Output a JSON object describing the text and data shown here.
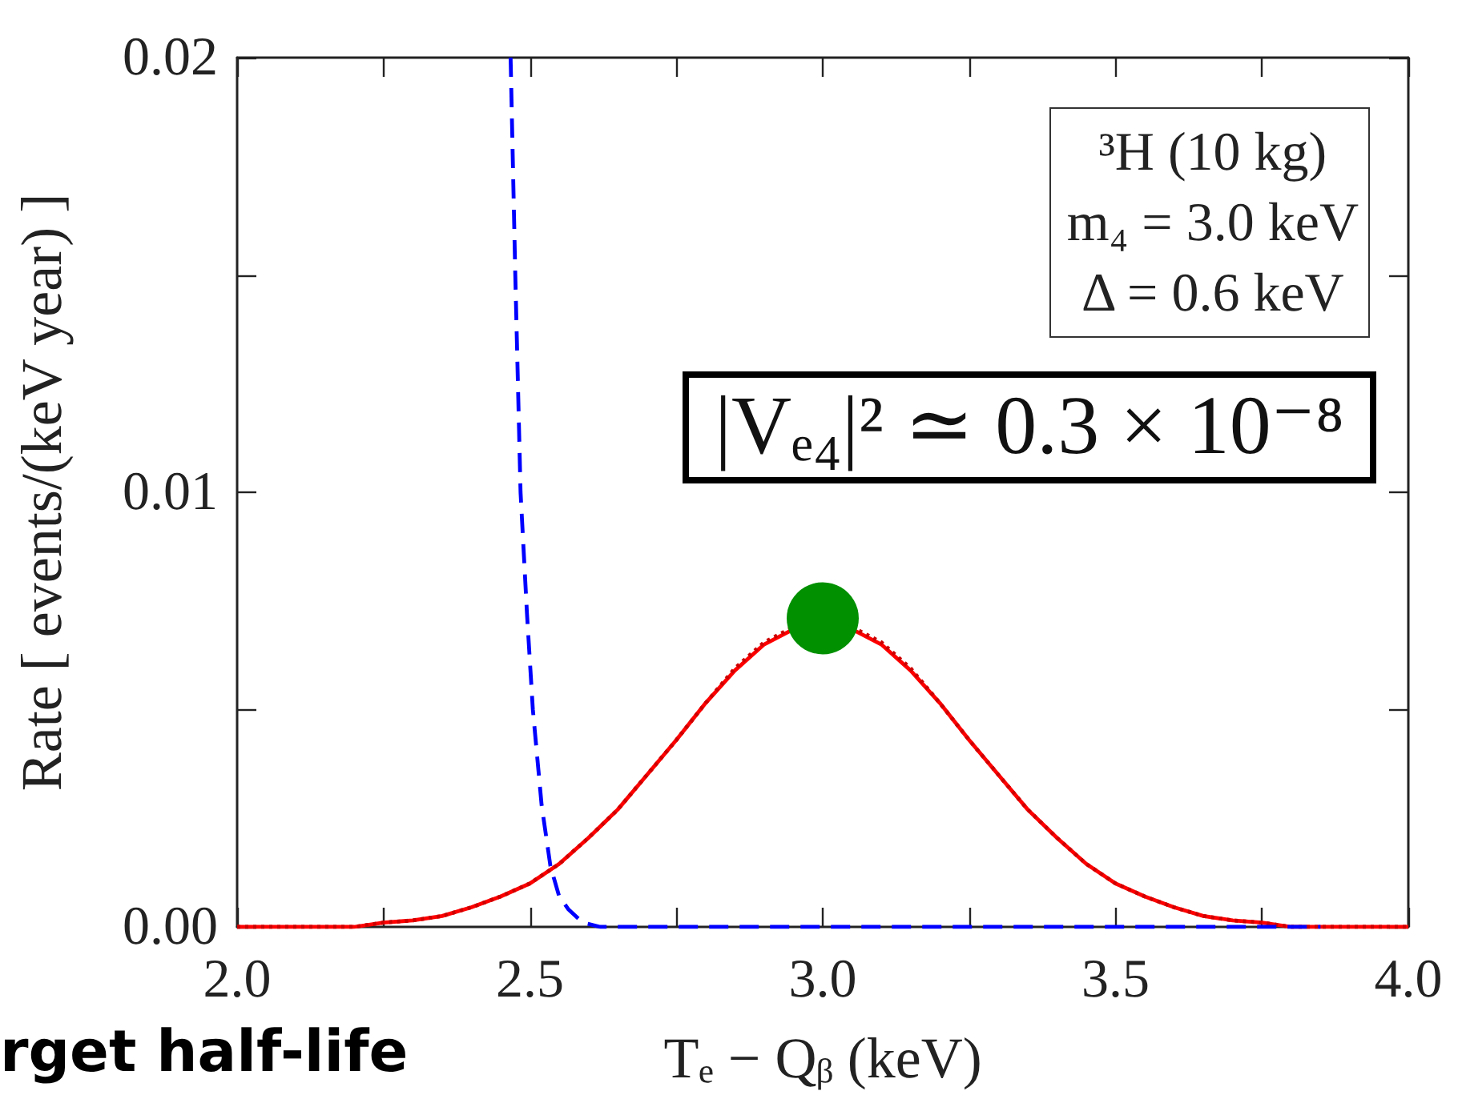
{
  "chart_data": {
    "type": "line",
    "xlabel": "Tₑ − Qᵦ (keV)",
    "ylabel": "Rate [ events/(keV year) ]",
    "annotations": [
      "³H (10 kg)",
      "m₄ = 3.0 keV",
      "Δ = 0.6 keV",
      "|Vₑ₄|² ≃ 0.3 × 10⁻⁸",
      "rget half-life"
    ],
    "xlim": [
      2,
      4
    ],
    "xticks": [
      {
        "value": 2,
        "label": "2.0"
      },
      {
        "value": 2.25,
        "label": null
      },
      {
        "value": 2.5,
        "label": "2.5"
      },
      {
        "value": 2.75,
        "label": null
      },
      {
        "value": 3,
        "label": "3.0"
      },
      {
        "value": 3.25,
        "label": null
      },
      {
        "value": 3.5,
        "label": "3.5"
      },
      {
        "value": 3.75,
        "label": null
      },
      {
        "value": 4,
        "label": "4.0"
      }
    ],
    "ylim": [
      0,
      0.02
    ],
    "yticks": [
      {
        "value": 0,
        "label": "0.00"
      },
      {
        "value": 0.005,
        "label": null
      },
      0.01,
      {
        "value": 0.015,
        "label": null
      },
      0.02
    ],
    "marker": "none",
    "series": [
      {
        "color": "#ff0000",
        "line_style": "solid",
        "x": [
          2,
          2.05,
          2.1,
          2.15,
          2.2,
          2.25,
          2.3,
          2.35,
          2.4,
          2.45,
          2.5,
          2.55,
          2.6,
          2.65,
          2.7,
          2.75,
          2.8,
          2.85,
          2.9,
          2.95,
          3,
          3.05,
          3.1,
          3.15,
          3.2,
          3.25,
          3.3,
          3.35,
          3.4,
          3.45,
          3.5,
          3.55,
          3.6,
          3.65,
          3.7,
          3.75,
          3.8,
          3.85,
          3.9,
          3.95,
          4
        ],
        "values": [
          0,
          0,
          0,
          0,
          0,
          0.0001,
          0.00015,
          0.00025,
          0.00045,
          0.0007,
          0.001,
          0.00145,
          0.00205,
          0.0027,
          0.0035,
          0.0043,
          0.00515,
          0.0059,
          0.0065,
          0.00685,
          null,
          0.00685,
          0.0065,
          0.0059,
          0.00515,
          0.0043,
          0.0035,
          0.0027,
          0.00205,
          0.00145,
          0.001,
          0.0007,
          0.00045,
          0.00025,
          0.00015,
          0.0001,
          0,
          0,
          0,
          0,
          0
        ]
      },
      {
        "color": "#cc0000",
        "line_style": "dotted",
        "x": [
          2,
          2.05,
          2.1,
          2.15,
          2.2,
          2.25,
          2.3,
          2.35,
          2.4,
          2.45,
          2.5,
          2.55,
          2.6,
          2.65,
          2.7,
          2.75,
          2.8,
          2.85,
          2.9,
          2.95,
          3,
          3.05,
          3.1,
          3.15,
          3.2,
          3.25,
          3.3,
          3.35,
          3.4,
          3.45,
          3.5,
          3.55,
          3.6,
          3.65,
          3.7,
          3.75,
          3.8,
          3.85,
          3.9,
          3.95,
          4
        ],
        "values": [
          0,
          0,
          0,
          0,
          0,
          0.0001,
          0.00015,
          0.00025,
          0.00045,
          0.0007,
          0.001,
          0.00145,
          0.00205,
          0.0027,
          0.0035,
          0.0043,
          0.00515,
          0.00595,
          0.00655,
          0.0069,
          null,
          0.0069,
          0.00655,
          0.00595,
          0.00515,
          0.0043,
          0.0035,
          0.0027,
          0.00205,
          0.00145,
          0.001,
          0.0007,
          0.00045,
          0.00025,
          0.00015,
          0.0001,
          0,
          0,
          0,
          0,
          0
        ]
      },
      {
        "color": "#0000ff",
        "line_style": "dashed",
        "x": [
          2.467,
          2.475,
          2.484,
          2.495,
          2.505,
          2.52,
          2.535,
          2.55,
          2.566,
          2.59,
          2.62,
          3.85
        ],
        "values": [
          0.02,
          0.015,
          0.01,
          0.0072,
          0.005,
          0.0028,
          0.0014,
          0.0007,
          0.0004,
          0.0001,
          0,
          0
        ]
      },
      {
        "type": "scatter",
        "color": "#009000",
        "marker": "circle",
        "x": [
          3
        ],
        "values": [
          0.0071
        ]
      }
    ]
  }
}
